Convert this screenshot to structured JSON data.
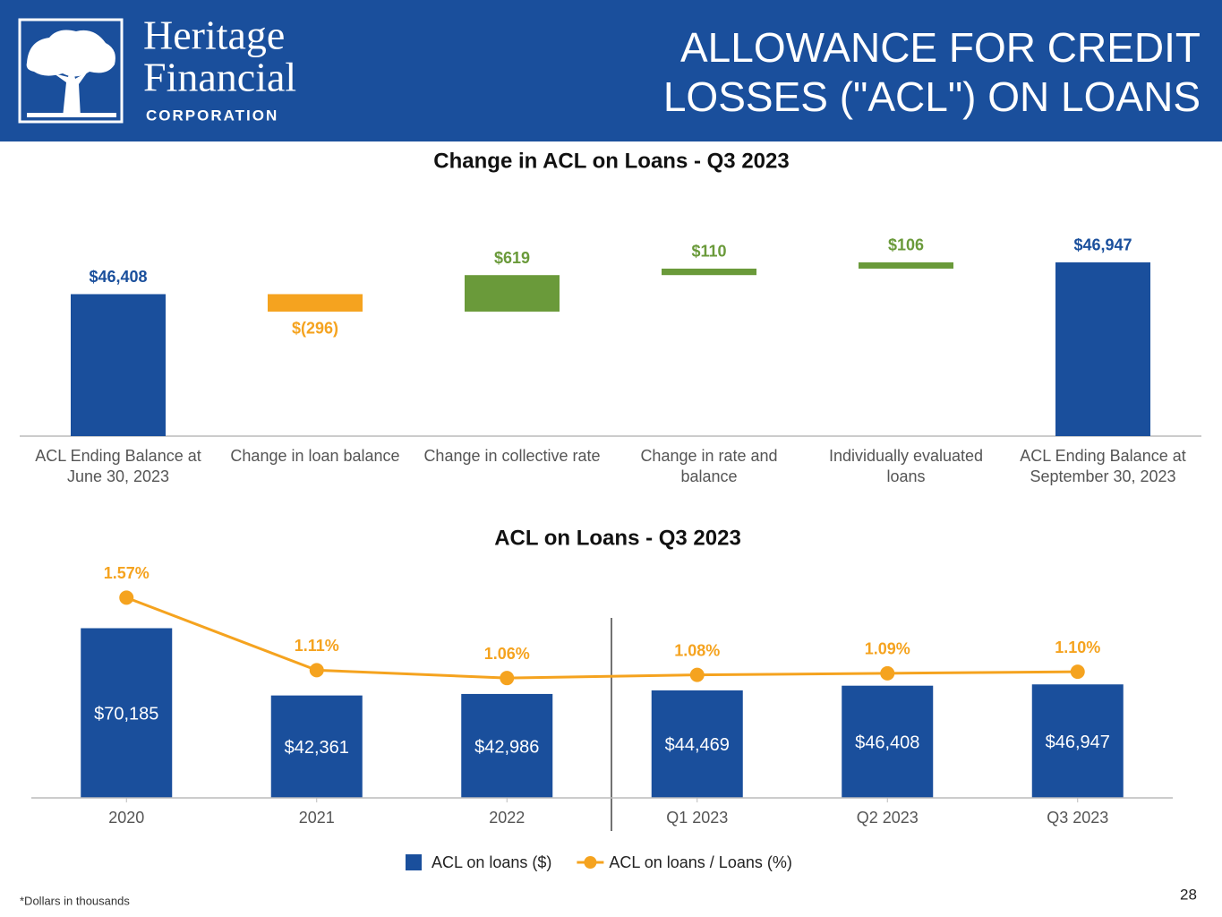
{
  "header": {
    "logo_line1": "Heritage",
    "logo_line2": "Financial",
    "logo_line3": "CORPORATION",
    "title": [
      "ALLOWANCE FOR CREDIT",
      "LOSSES (\"ACL\") ON LOANS"
    ]
  },
  "chart_data": [
    {
      "type": "waterfall",
      "title": "Change in ACL on Loans - Q3 2023",
      "categories": [
        "ACL Ending Balance at June 30, 2023",
        "Change in loan balance",
        "Change in collective rate",
        "Change in rate and balance",
        "Individually evaluated loans",
        "ACL Ending Balance at September 30, 2023"
      ],
      "values": [
        46408,
        -296,
        619,
        110,
        106,
        46947
      ],
      "value_labels": [
        "$46,408",
        "$(296)",
        "$619",
        "$110",
        "$106",
        "$46,947"
      ],
      "colors": [
        "#1a4f9c",
        "#f5a31f",
        "#6a9a3a",
        "#6a9a3a",
        "#6a9a3a",
        "#1a4f9c"
      ],
      "ylim": [
        44000,
        47600
      ]
    },
    {
      "type": "combo",
      "title": "ACL on Loans - Q3 2023",
      "categories": [
        "2020",
        "2021",
        "2022",
        "Q1 2023",
        "Q2 2023",
        "Q3 2023"
      ],
      "series": [
        {
          "name": "ACL on loans ($)",
          "color": "#1a4f9c",
          "values": [
            70185,
            42361,
            42986,
            44469,
            46408,
            46947
          ],
          "value_labels": [
            "$70,185",
            "$42,361",
            "$42,986",
            "$44,469",
            "$46,408",
            "$46,947"
          ]
        },
        {
          "name": "ACL on loans / Loans (%)",
          "color": "#f5a31f",
          "axis": "y2",
          "values": [
            1.57,
            1.11,
            1.06,
            1.08,
            1.09,
            1.1
          ],
          "value_labels": [
            "1.57%",
            "1.11%",
            "1.06%",
            "1.08%",
            "1.09%",
            "1.10%"
          ]
        }
      ],
      "ylim": [
        0,
        90000
      ],
      "y2lim": [
        0.3,
        1.68
      ],
      "legend": "bottom"
    }
  ],
  "footnote": "*Dollars in thousands",
  "page_number": "28"
}
